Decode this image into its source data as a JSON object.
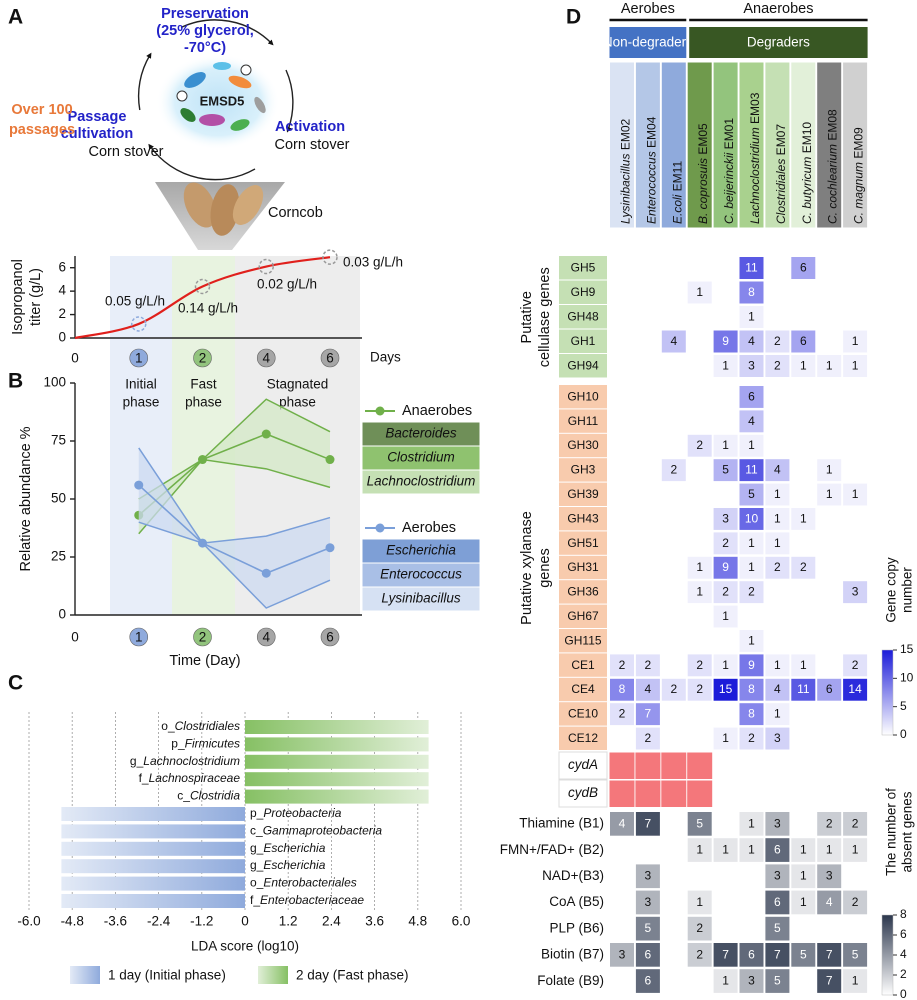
{
  "panel_labels": [
    "A",
    "B",
    "C",
    "D"
  ],
  "diagram": {
    "preservation": [
      "Preservation",
      "(25% glycerol,",
      "-70°C)"
    ],
    "center": "EMSD5",
    "activation": [
      "Activation",
      "Corn stover"
    ],
    "passage": [
      "Passage",
      "cultivation",
      "Corn stover"
    ],
    "passages_note": [
      "Over 100",
      "passages"
    ],
    "substrate": "Corncob"
  },
  "chart_data": [
    {
      "type": "line",
      "smooth": true,
      "ylabel": [
        "Isopropanol",
        "titer (g/L)"
      ],
      "xlabel": "Days",
      "categories": [
        "0",
        "1",
        "2",
        "4",
        "6"
      ],
      "category_colors": [
        null,
        "#8faadc",
        "#92c47d",
        "#a6a6a6",
        "#a6a6a6"
      ],
      "values": [
        0,
        1.2,
        4.4,
        6.1,
        6.9
      ],
      "color": "#e0201c",
      "ylim": [
        0,
        7
      ],
      "yticks": [
        0,
        2,
        4,
        6
      ],
      "annotations": [
        "0.05 g/L/h",
        "0.14 g/L/h",
        "0.02 g/L/h",
        "0.03 g/L/h"
      ],
      "phases": [
        {
          "label": [
            "Initial",
            "phase"
          ],
          "color": "#e8eef9"
        },
        {
          "label": [
            "Fast",
            "phase"
          ],
          "color": "#e8f3e0"
        },
        {
          "label": [
            "Stagnated",
            "phase"
          ],
          "color": "#ededed"
        }
      ]
    },
    {
      "type": "line",
      "ylabel": "Relative abundance %",
      "xlabel": "Time (Day)",
      "categories": [
        "0",
        "1",
        "2",
        "4",
        "6"
      ],
      "category_colors": [
        null,
        "#8faadc",
        "#92c47d",
        "#a6a6a6",
        "#a6a6a6"
      ],
      "ylim": [
        0,
        100
      ],
      "yticks": [
        0,
        25,
        50,
        75,
        100
      ],
      "phases": [
        {
          "color": "#e8eef9"
        },
        {
          "color": "#e8f3e0"
        },
        {
          "color": "#ededed"
        }
      ],
      "series": [
        {
          "name": "Anaerobes",
          "color": "#70b04a",
          "band_color": "#d3e8c6",
          "values": [
            null,
            43,
            67,
            78,
            67
          ],
          "upper": [
            null,
            50,
            67,
            93,
            79
          ],
          "lower": [
            null,
            35,
            67,
            63,
            55
          ],
          "legend_items": [
            {
              "label": "Bacteroides",
              "color": "#6f8f58"
            },
            {
              "label": "Clostridium",
              "color": "#8fc26f"
            },
            {
              "label": "Lachnoclostridium",
              "color": "#c5e0b4"
            }
          ]
        },
        {
          "name": "Aerobes",
          "color": "#7a9fd9",
          "band_color": "#ccd9f0",
          "values": [
            null,
            56,
            31,
            18,
            29
          ],
          "upper": [
            null,
            72,
            31,
            34,
            42
          ],
          "lower": [
            null,
            40,
            31,
            3,
            15
          ],
          "legend_items": [
            {
              "label": "Escherichia",
              "color": "#7e9fd6"
            },
            {
              "label": "Enterococcus",
              "color": "#a9bfe6"
            },
            {
              "label": "Lysinibacillus",
              "color": "#d6e1f3"
            }
          ]
        }
      ]
    },
    {
      "type": "bar",
      "orientation": "horizontal",
      "xlabel": "LDA score (log10)",
      "categories": [
        "o_Clostridiales",
        "p_Firmicutes",
        "g_Lachnoclostridium",
        "f_Lachnospiraceae",
        "c_Clostridia",
        "p_Proteobacteria",
        "c_Gammaproteobacteria",
        "g_Escherichia",
        "g_Escherichia",
        "o_Enterobacteriales",
        "f_Enterobacteriaceae"
      ],
      "xlim": [
        -6,
        6
      ],
      "xticks": [
        {
          "value": -6,
          "label": "-6.0"
        },
        -4.8,
        -3.6,
        -2.4,
        -1.2,
        0,
        1.2,
        2.4,
        3.6,
        4.8,
        {
          "value": 6,
          "label": "6.0"
        }
      ],
      "grid": true,
      "series": [
        {
          "name": "1 day (Initial phase)",
          "color": "#8faadc",
          "values": [
            null,
            null,
            null,
            null,
            null,
            -5.1,
            -5.1,
            -5.1,
            -5.1,
            -5.1,
            -5.1
          ]
        },
        {
          "name": "2 day (Fast phase)",
          "color": "#86c064",
          "values": [
            5.1,
            5.1,
            5.1,
            5.1,
            5.1,
            null,
            null,
            null,
            null,
            null,
            null
          ]
        }
      ]
    },
    {
      "type": "heatmap",
      "columns": [
        "Lysinibacillus EM02",
        "Enterococcus EM04",
        "E.coli EM11",
        "B. coprosuis EM05",
        "C. beijerinckii EM01",
        "Lachnoclostridium EM03",
        "Clostridiales EM07",
        "C. butyricum EM10",
        "C. cochlearium EM08",
        "C. magnum EM09"
      ],
      "column_colors": [
        "#dae3f3",
        "#b4c7e7",
        "#8faadc",
        "#6f9a4c",
        "#93c47d",
        "#a9d18e",
        "#c5e0b4",
        "#e2f0d9",
        "#7f7f7f",
        "#d0d0d0"
      ],
      "column_groups": [
        [
          {
            "label": "Aerobes",
            "span": 3
          },
          {
            "label": "Anaerobes",
            "span": 7
          }
        ],
        [
          {
            "label": "Non-degraders",
            "span": 3,
            "color": "#4472c4"
          },
          {
            "label": "Degraders",
            "span": 7,
            "color": "#385723"
          }
        ]
      ],
      "sections": [
        {
          "label": [
            "Putative",
            "cellulase genes"
          ],
          "color": "#c5e0b4",
          "rows": [
            "GH5",
            "GH9",
            "GH48",
            "GH1",
            "GH94"
          ],
          "values": [
            [
              null,
              null,
              null,
              null,
              null,
              11,
              null,
              6,
              null,
              null
            ],
            [
              null,
              null,
              null,
              1,
              null,
              8,
              null,
              null,
              null,
              null
            ],
            [
              null,
              null,
              null,
              null,
              null,
              1,
              null,
              null,
              null,
              null
            ],
            [
              null,
              null,
              4,
              null,
              9,
              4,
              2,
              6,
              null,
              1
            ],
            [
              null,
              null,
              null,
              null,
              1,
              3,
              2,
              1,
              1,
              1
            ]
          ]
        },
        {
          "label": [
            "Putative xylanase",
            "genes"
          ],
          "color": "#f8cbad",
          "rows": [
            "GH10",
            "GH11",
            "GH30",
            "GH3",
            "GH39",
            "GH43",
            "GH51",
            "GH31",
            "GH36",
            "GH67",
            "GH115",
            "CE1",
            "CE4",
            "CE10",
            "CE12"
          ],
          "values": [
            [
              null,
              null,
              null,
              null,
              null,
              6,
              null,
              null,
              null,
              null
            ],
            [
              null,
              null,
              null,
              null,
              null,
              4,
              null,
              null,
              null,
              null
            ],
            [
              null,
              null,
              null,
              2,
              1,
              1,
              null,
              null,
              null,
              null
            ],
            [
              null,
              null,
              2,
              null,
              5,
              11,
              4,
              null,
              1,
              null
            ],
            [
              null,
              null,
              null,
              null,
              null,
              5,
              1,
              null,
              1,
              1
            ],
            [
              null,
              null,
              null,
              null,
              3,
              10,
              1,
              1,
              null,
              null
            ],
            [
              null,
              null,
              null,
              null,
              2,
              1,
              1,
              null,
              null,
              null
            ],
            [
              null,
              null,
              null,
              1,
              9,
              1,
              2,
              2,
              null,
              null
            ],
            [
              null,
              null,
              null,
              1,
              2,
              2,
              null,
              null,
              null,
              3
            ],
            [
              null,
              null,
              null,
              null,
              1,
              null,
              null,
              null,
              null,
              null
            ],
            [
              null,
              null,
              null,
              null,
              null,
              1,
              null,
              null,
              null,
              null
            ],
            [
              2,
              2,
              null,
              2,
              1,
              9,
              1,
              1,
              null,
              2
            ],
            [
              8,
              4,
              2,
              2,
              15,
              8,
              4,
              11,
              6,
              14
            ],
            [
              2,
              7,
              null,
              null,
              null,
              8,
              1,
              null,
              null,
              null
            ],
            [
              null,
              2,
              null,
              null,
              1,
              2,
              3,
              null,
              null,
              null
            ]
          ]
        }
      ],
      "presence": {
        "rows": [
          "cydA",
          "cydB"
        ],
        "color": "#f4777b",
        "values": [
          [
            true,
            true,
            true,
            true,
            false,
            false,
            false,
            false,
            false,
            false
          ],
          [
            true,
            true,
            true,
            true,
            false,
            false,
            false,
            false,
            false,
            false
          ]
        ]
      },
      "colorbar_title": [
        "Gene copy",
        "number"
      ],
      "zlim": [
        0,
        15
      ],
      "zticks": [
        0,
        5,
        10,
        15
      ],
      "zcolors": [
        "#ffffff",
        "#1c1cd9"
      ]
    },
    {
      "type": "heatmap",
      "rows": [
        "Thiamine (B1)",
        "FMN+/FAD+ (B2)",
        "NAD+(B3)",
        "CoA (B5)",
        "PLP (B6)",
        "Biotin (B7)",
        "Folate (B9)"
      ],
      "values": [
        [
          4,
          7,
          null,
          5,
          null,
          1,
          3,
          null,
          2,
          2
        ],
        [
          null,
          null,
          null,
          1,
          1,
          1,
          6,
          1,
          1,
          1
        ],
        [
          null,
          3,
          null,
          null,
          null,
          null,
          3,
          1,
          3,
          null
        ],
        [
          null,
          3,
          null,
          1,
          null,
          null,
          6,
          1,
          4,
          2
        ],
        [
          null,
          5,
          null,
          2,
          null,
          null,
          5,
          null,
          null,
          null
        ],
        [
          3,
          6,
          null,
          2,
          7,
          6,
          7,
          5,
          7,
          5
        ],
        [
          null,
          6,
          null,
          null,
          1,
          3,
          5,
          null,
          7,
          1
        ]
      ],
      "colorbar_title": [
        "The number of",
        "absent genes"
      ],
      "zlim": [
        0,
        8
      ],
      "zticks": [
        0,
        2,
        4,
        6,
        8
      ],
      "zcolors": [
        "#ffffff",
        "#2c374d"
      ]
    }
  ]
}
